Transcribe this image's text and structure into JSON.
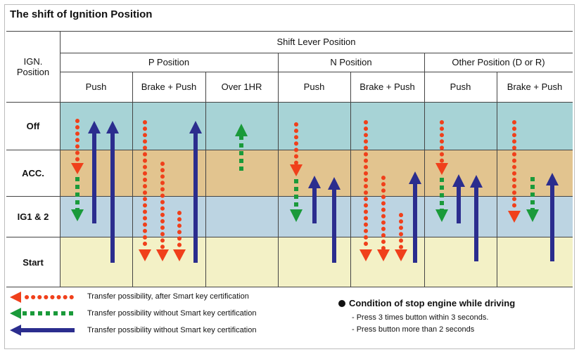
{
  "title": "The shift of Ignition Position",
  "header": {
    "ign_position": "IGN.\nPosition",
    "shift_lever_position": "Shift Lever Position",
    "groups": [
      "P Position",
      "N Position",
      "Other Position (D or R)"
    ],
    "columns": [
      "Push",
      "Brake + Push",
      "Over 1HR",
      "Push",
      "Brake + Push",
      "Push",
      "Brake + Push"
    ]
  },
  "rows": [
    "Off",
    "ACC.",
    "IG1 & 2",
    "Start"
  ],
  "colors": {
    "off_band": "#a7d3d6",
    "acc_band": "#e2c48f",
    "ig_band": "#bcd4e2",
    "start_band": "#f3f1c6",
    "red": "#f0401b",
    "green": "#1a9a3a",
    "blue": "#2b2d8e"
  },
  "legend": [
    {
      "style": "red-dotted",
      "label": "Transfer possibility, after Smart key certification"
    },
    {
      "style": "green-dashed",
      "label": "Transfer possibility without Smart key certification"
    },
    {
      "style": "blue-solid",
      "label": "Transfer possibility without Smart key certification"
    }
  ],
  "condition": {
    "title": "Condition of stop engine while driving",
    "items": [
      "- Press 3 times button within 3 seconds.",
      "- Press button more than 2 seconds"
    ]
  }
}
